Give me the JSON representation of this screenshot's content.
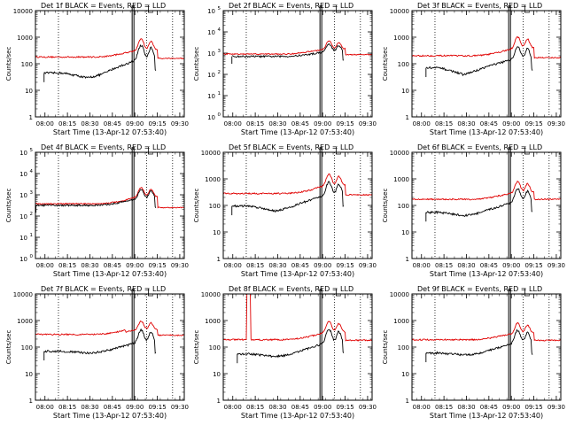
{
  "panel_title_suffix": " BLACK = Events, RED = LLD",
  "xlabel": "Start Time (13-Apr-12 07:53:40)",
  "ylabel": "Counts/sec",
  "x_ticks": [
    "08:00",
    "08:15",
    "08:30",
    "08:45",
    "09:00",
    "09:15",
    "09:30"
  ],
  "colors": {
    "events": "#000000",
    "lld": "#e00000",
    "axis": "#000000"
  },
  "chart_data": [
    {
      "type": "line",
      "detector": "Det 1f",
      "tick_format": "plain",
      "ylim": [
        1,
        10000
      ],
      "y_ticks": [
        "1",
        "10",
        "100",
        "1000",
        "10000"
      ],
      "x_range": [
        7.894,
        9.55
      ],
      "events_start": 7.99,
      "events_base": 45,
      "events_dip": 0.65,
      "events_peak": 550,
      "lld_base": 180,
      "lld_peak": 800,
      "lld_end": 160,
      "spike": null,
      "vlines": {
        "solid": [
          8.97,
          8.99
        ],
        "dotted": [
          8.15,
          9.13,
          9.42
        ]
      }
    },
    {
      "type": "line",
      "detector": "Det 2f",
      "tick_format": "exp",
      "ylim": [
        1,
        100000
      ],
      "y_ticks": [
        "0",
        "1",
        "2",
        "3",
        "4",
        "5"
      ],
      "x_range": [
        7.894,
        9.55
      ],
      "events_start": 7.99,
      "events_base": 700,
      "events_dip": 1.0,
      "events_peak": 2500,
      "lld_base": 900,
      "lld_peak": 3500,
      "lld_end": 850,
      "spike": null,
      "vlines": {
        "solid": [
          8.97,
          8.99
        ],
        "dotted": [
          8.15,
          9.13,
          9.42
        ]
      }
    },
    {
      "type": "line",
      "detector": "Det 3f",
      "tick_format": "plain",
      "ylim": [
        1,
        10000
      ],
      "y_ticks": [
        "1",
        "10",
        "100",
        "1000",
        "10000"
      ],
      "x_range": [
        7.894,
        9.55
      ],
      "events_start": 8.05,
      "events_base": 70,
      "events_dip": 0.55,
      "events_peak": 450,
      "lld_base": 200,
      "lld_peak": 1000,
      "lld_end": 170,
      "spike": null,
      "vlines": {
        "solid": [
          8.97,
          8.99
        ],
        "dotted": [
          8.15,
          9.13,
          9.42
        ]
      }
    },
    {
      "type": "line",
      "detector": "Det 4f",
      "tick_format": "exp",
      "ylim": [
        1,
        100000
      ],
      "y_ticks": [
        "0",
        "1",
        "2",
        "3",
        "4",
        "5"
      ],
      "x_range": [
        7.894,
        9.55
      ],
      "events_start": 7.9,
      "events_base": 320,
      "events_dip": 1.0,
      "events_peak": 1800,
      "lld_base": 380,
      "lld_peak": 2200,
      "lld_end": 250,
      "spike": null,
      "vlines": {
        "solid": [
          8.97,
          8.99
        ],
        "dotted": [
          8.15,
          9.13,
          9.42
        ]
      }
    },
    {
      "type": "line",
      "detector": "Det 5f",
      "tick_format": "plain",
      "ylim": [
        1,
        10000
      ],
      "y_ticks": [
        "1",
        "10",
        "100",
        "1000",
        "10000"
      ],
      "x_range": [
        7.894,
        9.55
      ],
      "events_start": 7.99,
      "events_base": 95,
      "events_dip": 0.65,
      "events_peak": 800,
      "lld_base": 280,
      "lld_peak": 1500,
      "lld_end": 250,
      "spike": null,
      "vlines": {
        "solid": [
          8.97,
          8.99
        ],
        "dotted": [
          8.15,
          9.13,
          9.42
        ]
      }
    },
    {
      "type": "line",
      "detector": "Det 6f",
      "tick_format": "plain",
      "ylim": [
        1,
        10000
      ],
      "y_ticks": [
        "1",
        "10",
        "100",
        "1000",
        "10000"
      ],
      "x_range": [
        7.894,
        9.55
      ],
      "events_start": 8.05,
      "events_base": 55,
      "events_dip": 0.75,
      "events_peak": 450,
      "lld_base": 170,
      "lld_peak": 750,
      "lld_end": 170,
      "spike": null,
      "vlines": {
        "solid": [
          8.97,
          8.99
        ],
        "dotted": [
          8.15,
          9.13,
          9.42
        ]
      }
    },
    {
      "type": "line",
      "detector": "Det 7f",
      "tick_format": "plain",
      "ylim": [
        1,
        10000
      ],
      "y_ticks": [
        "1",
        "10",
        "100",
        "1000",
        "10000"
      ],
      "x_range": [
        7.894,
        9.55
      ],
      "events_start": 7.99,
      "events_base": 70,
      "events_dip": 0.85,
      "events_peak": 450,
      "lld_base": 300,
      "lld_peak": 800,
      "lld_end": 280,
      "spike": null,
      "vlines": {
        "solid": [
          8.97,
          8.99
        ],
        "dotted": [
          8.15,
          9.13,
          9.42
        ]
      }
    },
    {
      "type": "line",
      "detector": "Det 8f",
      "tick_format": "plain",
      "ylim": [
        1,
        10000
      ],
      "y_ticks": [
        "1",
        "10",
        "100",
        "1000",
        "10000"
      ],
      "x_range": [
        7.894,
        9.55
      ],
      "events_start": 8.05,
      "events_base": 55,
      "events_dip": 0.8,
      "events_peak": 500,
      "lld_base": 190,
      "lld_peak": 900,
      "lld_end": 180,
      "spike": {
        "x0": 8.15,
        "x1": 8.2,
        "value": 10000
      },
      "vlines": {
        "solid": [
          8.97,
          8.99
        ],
        "dotted": [
          8.15,
          9.13,
          9.42
        ]
      }
    },
    {
      "type": "line",
      "detector": "Det 9f",
      "tick_format": "plain",
      "ylim": [
        1,
        10000
      ],
      "y_ticks": [
        "1",
        "10",
        "100",
        "1000",
        "10000"
      ],
      "x_range": [
        7.894,
        9.55
      ],
      "events_start": 8.05,
      "events_base": 60,
      "events_dip": 0.85,
      "events_peak": 450,
      "lld_base": 190,
      "lld_peak": 750,
      "lld_end": 180,
      "spike": null,
      "vlines": {
        "solid": [
          8.97,
          8.99
        ],
        "dotted": [
          8.15,
          9.13,
          9.42
        ]
      }
    }
  ]
}
